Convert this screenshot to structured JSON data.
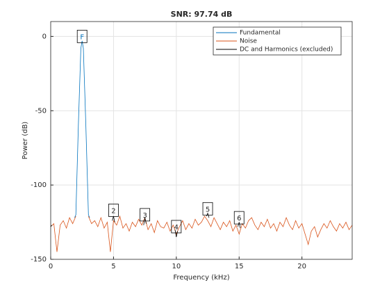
{
  "chart_data": {
    "type": "line",
    "title": "SNR:  97.74 dB",
    "xlabel": "Frequency (kHz)",
    "ylabel": "Power (dB)",
    "xlim": [
      0,
      24
    ],
    "ylim": [
      -150,
      10
    ],
    "xticks": [
      0,
      5,
      10,
      15,
      20
    ],
    "yticks": [
      -150,
      -100,
      -50,
      0
    ],
    "grid": true,
    "legend": "northeast",
    "series": [
      {
        "name": "Fundamental",
        "color": "#0072bd",
        "x": [
          1.9,
          2.0,
          2.2,
          2.4,
          2.5,
          2.6,
          2.8,
          3.0,
          3.1
        ],
        "values": [
          -122,
          -120,
          -60,
          -8,
          -3,
          -8,
          -60,
          -120,
          -122
        ]
      },
      {
        "name": "Noise",
        "color": "#d95319",
        "x": [
          0,
          0.25,
          0.5,
          0.75,
          1,
          1.25,
          1.5,
          1.75,
          2,
          2.25,
          2.5,
          2.75,
          3,
          3.25,
          3.5,
          3.75,
          4,
          4.25,
          4.5,
          4.75,
          5,
          5.25,
          5.5,
          5.75,
          6,
          6.25,
          6.5,
          6.75,
          7,
          7.25,
          7.5,
          7.75,
          8,
          8.25,
          8.5,
          8.75,
          9,
          9.25,
          9.5,
          9.75,
          10,
          10.25,
          10.5,
          10.75,
          11,
          11.25,
          11.5,
          11.75,
          12,
          12.25,
          12.5,
          12.75,
          13,
          13.25,
          13.5,
          13.75,
          14,
          14.25,
          14.5,
          14.75,
          15,
          15.25,
          15.5,
          15.75,
          16,
          16.25,
          16.5,
          16.75,
          17,
          17.25,
          17.5,
          17.75,
          18,
          18.25,
          18.5,
          18.75,
          19,
          19.25,
          19.5,
          19.75,
          20,
          20.25,
          20.5,
          20.75,
          21,
          21.25,
          21.5,
          21.75,
          22,
          22.25,
          22.5,
          22.75,
          23,
          23.25,
          23.5,
          23.75,
          24
        ],
        "values": [
          -128,
          -126,
          -145,
          -127,
          -124,
          -129,
          -122,
          -126,
          -121,
          null,
          null,
          null,
          -121,
          -126,
          -124,
          -128,
          -122,
          -129,
          -125,
          -145,
          -124,
          -127,
          -121,
          -129,
          -126,
          -131,
          -125,
          -128,
          -123,
          -127,
          -122,
          -130,
          -126,
          -132,
          -124,
          -128,
          -129,
          -125,
          -131,
          -127,
          -133,
          -128,
          -124,
          -130,
          -126,
          -129,
          -123,
          -127,
          -125,
          -121,
          -124,
          -128,
          -122,
          -126,
          -130,
          -125,
          -128,
          -124,
          -131,
          -127,
          -133,
          -126,
          -129,
          -124,
          -122,
          -127,
          -130,
          -125,
          -128,
          -123,
          -129,
          -126,
          -131,
          -125,
          -128,
          -122,
          -127,
          -130,
          -124,
          -129,
          -126,
          -133,
          -140,
          -131,
          -128,
          -135,
          -130,
          -126,
          -129,
          -124,
          -128,
          -131,
          -126,
          -129,
          -125,
          -130,
          -127
        ]
      },
      {
        "name": "DC and Harmonics (excluded)",
        "color": "#000000",
        "x": [
          0,
          0.1,
          0.1,
          4.9,
          5,
          5.1,
          5.1,
          7.4,
          7.5,
          7.6,
          7.6,
          9.9,
          10,
          10.1,
          10.1,
          12.4,
          12.5,
          12.6,
          12.6,
          14.9,
          15,
          15.1
        ],
        "values": [
          -128,
          -127,
          null,
          -124,
          -121,
          -125,
          null,
          -127,
          -122,
          -126,
          null,
          -130,
          -135,
          -131,
          null,
          -121,
          -119,
          -122,
          null,
          -128,
          -125,
          -129
        ]
      }
    ],
    "annotations": [
      {
        "label": "F",
        "x": 2.5,
        "y": 0
      },
      {
        "label": "2",
        "x": 5,
        "y": -117
      },
      {
        "label": "3",
        "x": 7.5,
        "y": -120
      },
      {
        "label": "4",
        "x": 10,
        "y": -128
      },
      {
        "label": "5",
        "x": 12.5,
        "y": -116
      },
      {
        "label": "6",
        "x": 15,
        "y": -122
      }
    ]
  }
}
